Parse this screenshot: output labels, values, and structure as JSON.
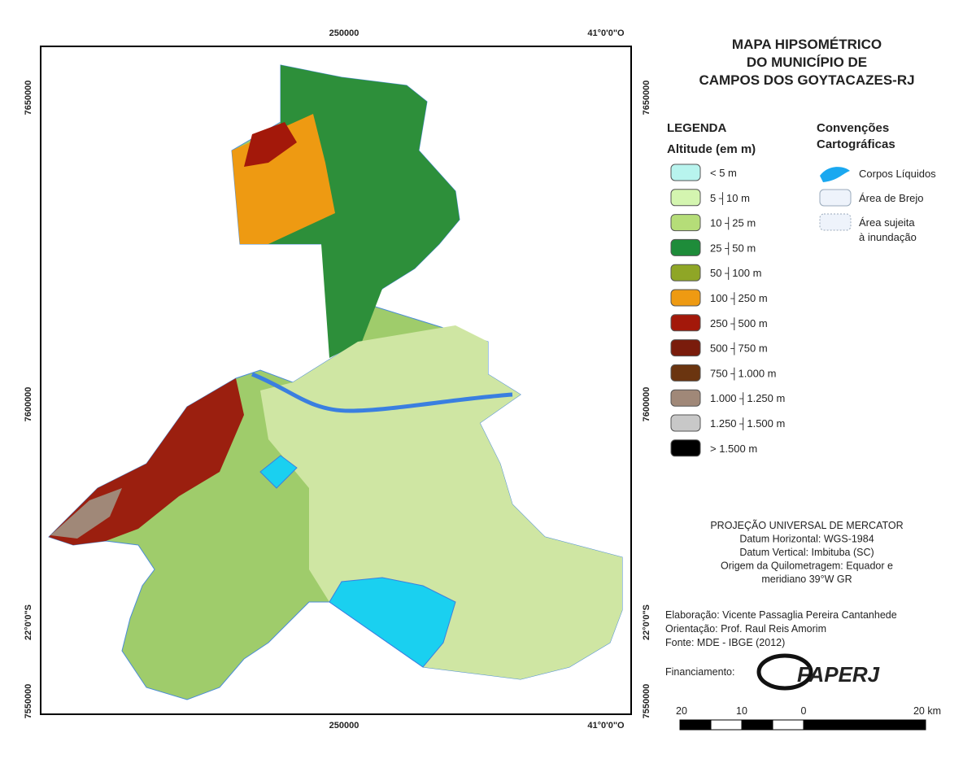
{
  "map": {
    "title": [
      "MAPA HIPSOMÉTRICO",
      "DO MUNICÍPIO DE",
      "CAMPOS DOS GOYTACAZES-RJ"
    ],
    "frame_labels": {
      "top": [
        "250000",
        "41°0'0\"O"
      ],
      "bottom": [
        "250000",
        "41°0'0\"O"
      ],
      "left": [
        "7650000",
        "7600000",
        "22°0'0\"S",
        "7550000"
      ],
      "right": [
        "7650000",
        "7600000",
        "22°0'0\"S",
        "7550000"
      ]
    },
    "legend": {
      "title": "LEGENDA",
      "subtitle": "Altitude (em m)",
      "items": [
        {
          "label": "< 5 m",
          "color": "#b8f4ee"
        },
        {
          "label": "5 ┤10 m",
          "color": "#d4f5b0"
        },
        {
          "label": "10 ┤25 m",
          "color": "#b5dd78"
        },
        {
          "label": "25 ┤50 m",
          "color": "#1e8c3a"
        },
        {
          "label": "50 ┤100 m",
          "color": "#8fa626"
        },
        {
          "label": "100 ┤250 m",
          "color": "#ee9a12"
        },
        {
          "label": "250 ┤500 m",
          "color": "#a3180a"
        },
        {
          "label": "500 ┤750 m",
          "color": "#7a1c0c"
        },
        {
          "label": "750 ┤1.000 m",
          "color": "#6b3510"
        },
        {
          "label": "1.000 ┤1.250 m",
          "color": "#a08878"
        },
        {
          "label": "1.250 ┤1.500 m",
          "color": "#c8c8c8"
        },
        {
          "label": "> 1.500 m",
          "color": "#000000"
        }
      ]
    },
    "conventions": {
      "title": [
        "Convenções",
        "Cartográficas"
      ],
      "items": [
        [
          "Corpos Líquidos"
        ],
        [
          "Área de Brejo"
        ],
        [
          "Área sujeita",
          "à inundação"
        ]
      ]
    },
    "projection": [
      "PROJEÇÃO UNIVERSAL DE MERCATOR",
      "Datum Horizontal: WGS-1984",
      "Datum Vertical: Imbituba (SC)",
      "Origem da Quilometragem: Equador e",
      "meridiano 39°W GR"
    ],
    "credits": [
      "Elaboração: Vicente Passaglia Pereira Cantanhede",
      "Orientação: Prof. Raul Reis Amorim",
      "Fonte: MDE - IBGE (2012)"
    ],
    "funding": {
      "label": "Financiamento:",
      "logo": "FAPERJ"
    },
    "scale_bar": {
      "labels": [
        "20",
        "10",
        "0",
        "20 km"
      ]
    }
  }
}
